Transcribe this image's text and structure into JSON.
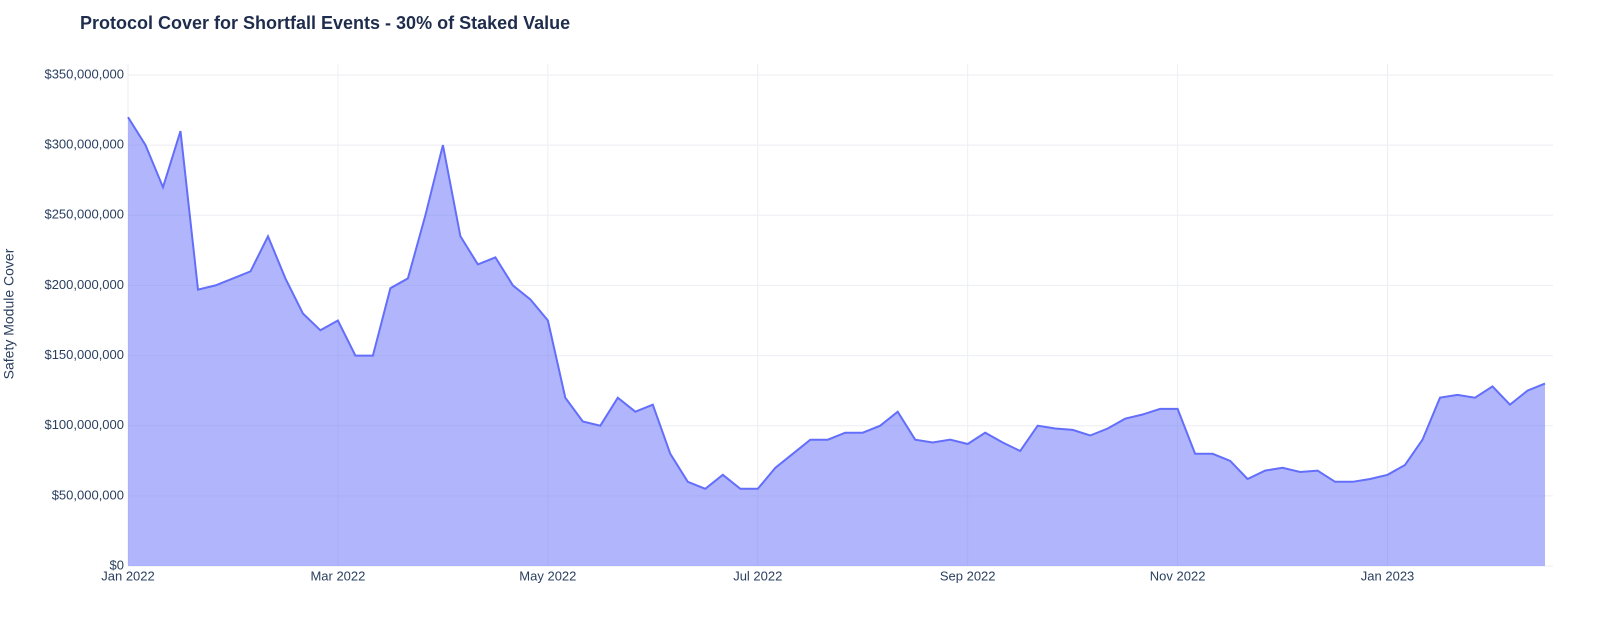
{
  "chart_data": {
    "type": "area",
    "title": "Protocol Cover for Shortfall Events - 30% of Staked Value",
    "y_label": "Safety Module Cover",
    "color": "#636efa",
    "grid": true,
    "categories": [
      "Jan 2022",
      null,
      null,
      null,
      null,
      null,
      null,
      null,
      null,
      null,
      null,
      null,
      "Mar 2022",
      null,
      null,
      null,
      null,
      null,
      null,
      null,
      null,
      null,
      null,
      null,
      "May 2022",
      null,
      null,
      null,
      null,
      null,
      null,
      null,
      null,
      null,
      null,
      null,
      "Jul 2022",
      null,
      null,
      null,
      null,
      null,
      null,
      null,
      null,
      null,
      null,
      null,
      "Sep 2022",
      null,
      null,
      null,
      null,
      null,
      null,
      null,
      null,
      null,
      null,
      null,
      "Nov 2022",
      null,
      null,
      null,
      null,
      null,
      null,
      null,
      null,
      null,
      null,
      null,
      "Jan 2023",
      null,
      null,
      null,
      null,
      null,
      null,
      null,
      null,
      null
    ],
    "values": [
      320000000,
      300000000,
      270000000,
      310000000,
      197000000,
      200000000,
      205000000,
      210000000,
      235000000,
      205000000,
      180000000,
      168000000,
      175000000,
      150000000,
      150000000,
      198000000,
      205000000,
      250000000,
      300000000,
      235000000,
      215000000,
      220000000,
      200000000,
      190000000,
      175000000,
      120000000,
      103000000,
      100000000,
      120000000,
      110000000,
      115000000,
      80000000,
      60000000,
      55000000,
      65000000,
      55000000,
      55000000,
      70000000,
      80000000,
      90000000,
      90000000,
      95000000,
      95000000,
      100000000,
      110000000,
      90000000,
      88000000,
      90000000,
      87000000,
      95000000,
      88000000,
      82000000,
      100000000,
      98000000,
      97000000,
      93000000,
      98000000,
      105000000,
      108000000,
      112000000,
      112000000,
      80000000,
      80000000,
      75000000,
      62000000,
      68000000,
      70000000,
      67000000,
      68000000,
      60000000,
      60000000,
      62000000,
      65000000,
      72000000,
      90000000,
      120000000,
      122000000,
      120000000,
      128000000,
      115000000,
      125000000,
      130000000
    ],
    "ylim": [
      0,
      350000000
    ],
    "yticks": [
      {
        "value": 0,
        "label": "$0"
      },
      {
        "value": 50000000,
        "label": "$50,000,000"
      },
      {
        "value": 100000000,
        "label": "$100,000,000"
      },
      {
        "value": 150000000,
        "label": "$150,000,000"
      },
      {
        "value": 200000000,
        "label": "$200,000,000"
      },
      {
        "value": 250000000,
        "label": "$250,000,000"
      },
      {
        "value": 300000000,
        "label": "$300,000,000"
      },
      {
        "value": 350000000,
        "label": "$350,000,000"
      }
    ]
  }
}
